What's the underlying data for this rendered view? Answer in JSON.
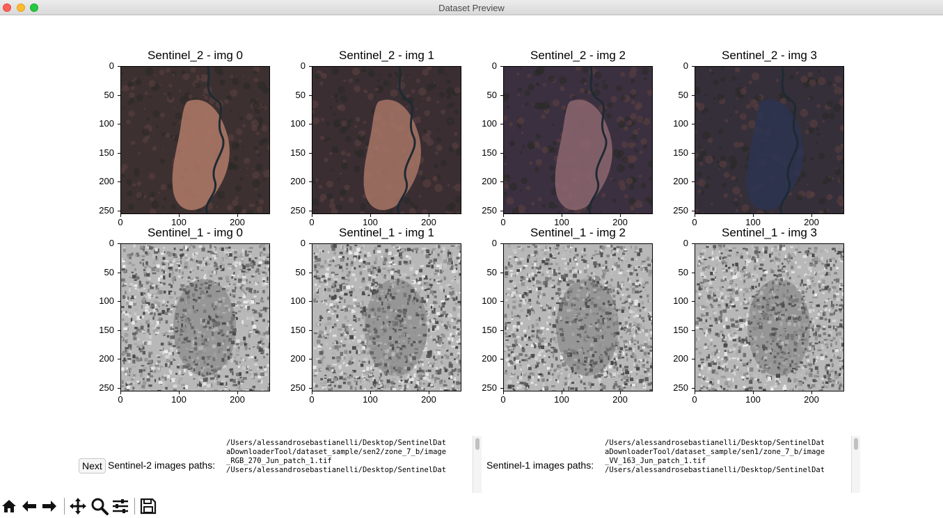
{
  "window": {
    "title": "Dataset Preview"
  },
  "figure": {
    "rows": [
      {
        "name": "Sentinel_2",
        "kind": "optical",
        "subplots": [
          {
            "title": "Sentinel_2 - img 0"
          },
          {
            "title": "Sentinel_2 - img 1"
          },
          {
            "title": "Sentinel_2 - img 2"
          },
          {
            "title": "Sentinel_2 - img 3"
          }
        ]
      },
      {
        "name": "Sentinel_1",
        "kind": "sar",
        "subplots": [
          {
            "title": "Sentinel_1 - img 0"
          },
          {
            "title": "Sentinel_1 - img 1"
          },
          {
            "title": "Sentinel_1 - img 2"
          },
          {
            "title": "Sentinel_1 - img 3"
          }
        ]
      }
    ],
    "y_ticks": [
      "0",
      "50",
      "100",
      "150",
      "200",
      "250"
    ],
    "x_ticks": [
      "0",
      "100",
      "200"
    ],
    "ylim": [
      256,
      0
    ],
    "xlim": [
      0,
      256
    ]
  },
  "controls": {
    "next_label": "Next",
    "sen2_label": "Sentinel-2 images paths:",
    "sen1_label": "Sentinel-1 images paths:",
    "sen2_paths": "/Users/alessandrosebastianelli/Desktop/SentinelDat\naDownloaderTool/dataset_sample/sen2/zone_7_b/image\n_RGB_270_Jun_patch_1.tif\n/Users/alessandrosebastianelli/Desktop/SentinelDat",
    "sen1_paths": "/Users/alessandrosebastianelli/Desktop/SentinelDat\naDownloaderTool/dataset_sample/sen1/zone_7_b/image\n_VV_163_Jun_patch_1.tif\n/Users/alessandrosebastianelli/Desktop/SentinelDat"
  },
  "toolbar": {
    "icons": [
      "home-icon",
      "back-arrow-icon",
      "forward-arrow-icon",
      "pan-icon",
      "zoom-icon",
      "configure-subplots-icon",
      "save-icon"
    ]
  },
  "colors": {
    "close": "#fe5f57",
    "minimize": "#febc2e",
    "maximize": "#28c840"
  }
}
